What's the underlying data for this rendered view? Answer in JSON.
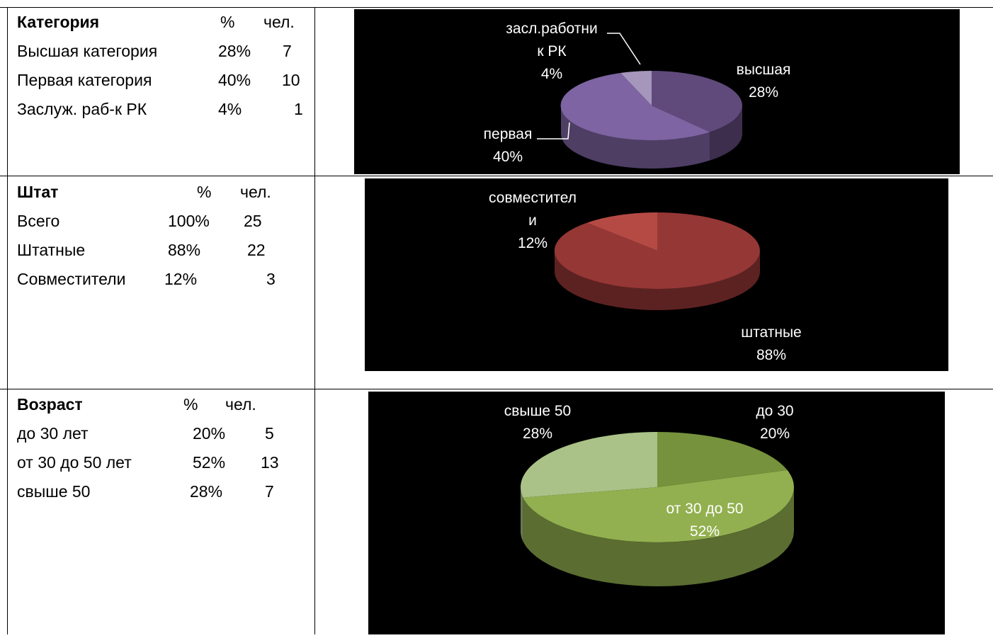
{
  "tables": [
    {
      "header": {
        "label": "Категория",
        "pct": "%",
        "count": "чел."
      },
      "rows": [
        {
          "label": "Высшая категория",
          "pct": "28%",
          "count": "7"
        },
        {
          "label": "Первая категория",
          "pct": "40%",
          "count": "10"
        },
        {
          "label": "Заслуж. раб-к РК",
          "pct": "4%",
          "count": "1"
        }
      ]
    },
    {
      "header": {
        "label": "Штат",
        "pct": "%",
        "count": "чел."
      },
      "rows": [
        {
          "label": "Всего",
          "pct": "100%",
          "count": "25"
        },
        {
          "label": "Штатные",
          "pct": "88%",
          "count": "22"
        },
        {
          "label": "Совместители",
          "pct": "12%",
          "count": "3"
        }
      ]
    },
    {
      "header": {
        "label": "Возраст",
        "pct": "%",
        "count": "чел."
      },
      "rows": [
        {
          "label": "до 30 лет",
          "pct": "20%",
          "count": "5"
        },
        {
          "label": "от 30 до 50 лет",
          "pct": "52%",
          "count": "13"
        },
        {
          "label": "свыше 50",
          "pct": "28%",
          "count": "7"
        }
      ]
    }
  ],
  "chart_data": [
    {
      "type": "pie",
      "slices": [
        {
          "label": [
            "высшая",
            "28%"
          ],
          "value": 28,
          "color": "#604A7B"
        },
        {
          "label": [
            "первая",
            "40%"
          ],
          "value": 40,
          "color": "#7E64A2"
        },
        {
          "label": [
            "засл.работни",
            "к РК",
            "4%"
          ],
          "value": 4,
          "color": "#A596BC"
        }
      ],
      "note": "remaining slices not labeled; visible body is purple"
    },
    {
      "type": "pie",
      "slices": [
        {
          "label": [
            "штатные",
            "88%"
          ],
          "value": 88,
          "color": "#953735"
        },
        {
          "label": [
            "совместител",
            "и",
            "12%"
          ],
          "value": 12,
          "color": "#B54A45"
        }
      ]
    },
    {
      "type": "pie",
      "slices": [
        {
          "label": [
            "до 30",
            "20%"
          ],
          "value": 20,
          "color": "#76923C"
        },
        {
          "label": [
            "от 30 до 50",
            "52%"
          ],
          "value": 52,
          "color": "#92B04F"
        },
        {
          "label": [
            "свыше 50",
            "28%"
          ],
          "value": 28,
          "color": "#AAC287"
        }
      ]
    }
  ]
}
